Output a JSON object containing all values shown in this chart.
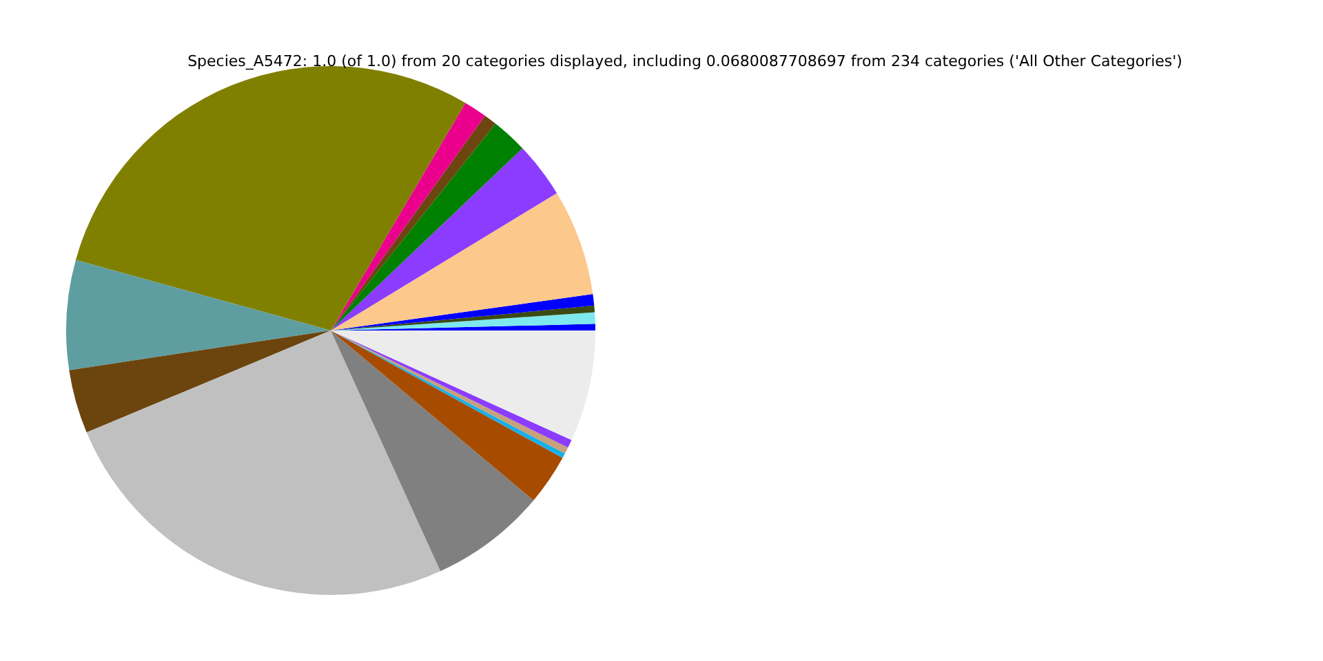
{
  "chart_data": {
    "type": "pie",
    "title": "Species_A5472: 1.0 (of 1.0) from 20 categories displayed, including 0.0680087708697 from 234 categories ('All Other Categories')",
    "categories": [
      null,
      null,
      null,
      null,
      null,
      null,
      null,
      null,
      null,
      null,
      null,
      null,
      null,
      null,
      null,
      null,
      null,
      null,
      null
    ],
    "values": [
      0.4,
      0.7,
      0.4,
      0.7,
      6.5,
      3.4,
      2.2,
      0.8,
      1.4,
      29.2,
      6.7,
      3.9,
      25.5,
      7.1,
      3.1,
      0.3,
      0.4,
      0.5,
      6.8
    ],
    "colors": [
      "#0000ff",
      "#7ee8ee",
      "#3a4a12",
      "#0000ff",
      "#fdc88c",
      "#8b3cff",
      "#008000",
      "#6d4511",
      "#ea008c",
      "#808000",
      "#5f9ea0",
      "#6b440e",
      "#c0c0c0",
      "#808080",
      "#a64b00",
      "#17b0e8",
      "#c8a07a",
      "#8b3cff",
      "#ececec"
    ]
  }
}
